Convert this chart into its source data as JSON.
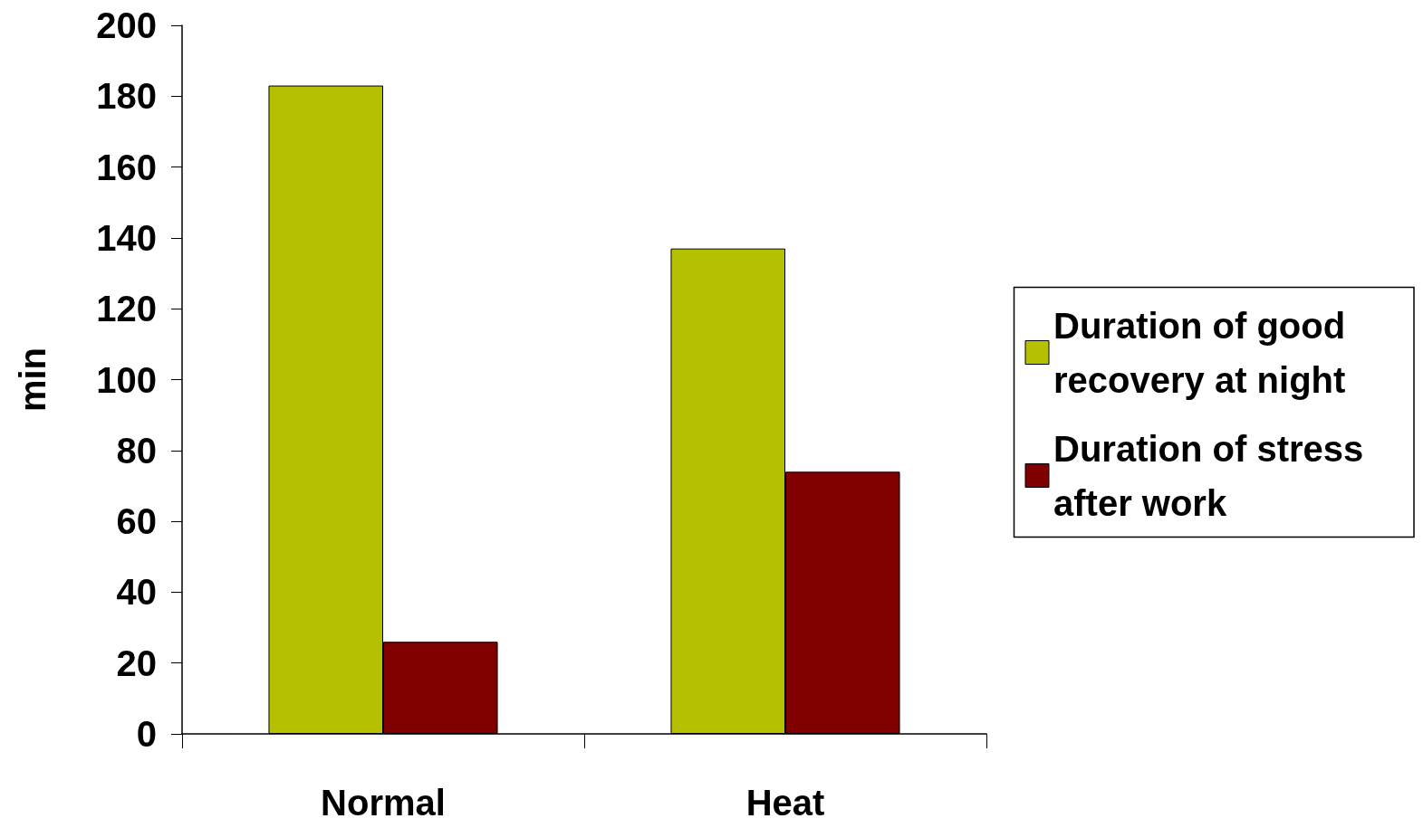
{
  "chart_data": {
    "type": "bar",
    "ylabel": "min",
    "categories": [
      "Normal",
      "Heat"
    ],
    "series": [
      {
        "name": "Duration of good recovery at night",
        "color": "#b5c100",
        "values": [
          183,
          137
        ]
      },
      {
        "name": "Duration of stress after work",
        "color": "#800000",
        "values": [
          26,
          74
        ]
      }
    ],
    "ylim": [
      0,
      200
    ],
    "yticks": [
      0,
      20,
      40,
      60,
      80,
      100,
      120,
      140,
      160,
      180,
      200
    ],
    "grid": false,
    "legend": "right"
  }
}
